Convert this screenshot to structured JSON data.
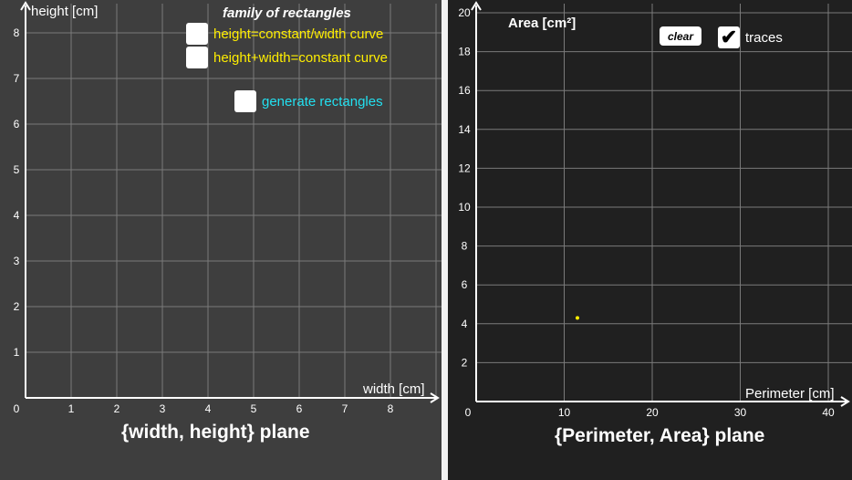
{
  "left": {
    "family_title": "family of rectangles",
    "checkboxes": [
      {
        "label": "height=constant/width curve",
        "checked": false,
        "color": "#ffee00"
      },
      {
        "label": "height+width=constant curve",
        "checked": false,
        "color": "#ffee00"
      },
      {
        "label": "generate rectangles",
        "checked": false,
        "color": "#22e0f0"
      }
    ],
    "plane_label": "{width, height} plane",
    "x_axis_label": "width [cm]",
    "y_axis_label": "height [cm]",
    "x_ticks": [
      "0",
      "1",
      "2",
      "3",
      "4",
      "5",
      "6",
      "7",
      "8"
    ],
    "y_ticks": [
      "1",
      "2",
      "3",
      "4",
      "5",
      "6",
      "7",
      "8"
    ]
  },
  "right": {
    "clear_label": "clear",
    "traces": {
      "label": "traces",
      "checked": true
    },
    "plane_label": "{Perimeter, Area} plane",
    "x_axis_label": "Perimeter [cm]",
    "y_axis_label": "Area [cm²]",
    "x_ticks": [
      "0",
      "10",
      "20",
      "30",
      "40"
    ],
    "y_ticks": [
      "2",
      "4",
      "6",
      "8",
      "10",
      "12",
      "14",
      "16",
      "18",
      "20"
    ],
    "point": {
      "perimeter": 11.5,
      "area": 4.3,
      "color": "#ffee00"
    }
  },
  "colors": {
    "left_bg": "#3e3e3e",
    "right_bg": "#202020",
    "grid": "#7a7a7a",
    "axis": "#ffffff"
  }
}
